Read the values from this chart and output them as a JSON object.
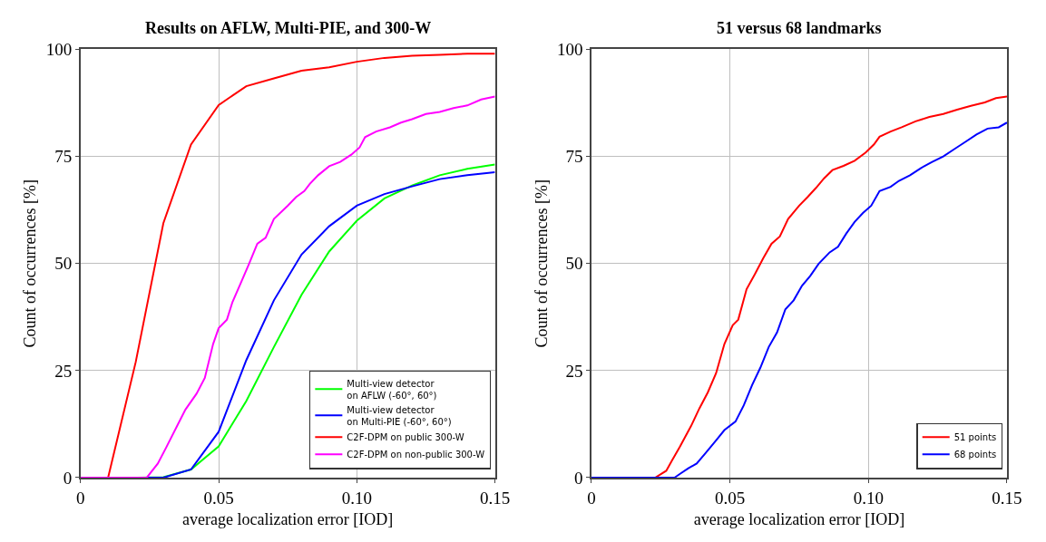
{
  "chart_data": [
    {
      "type": "line",
      "title": "Results on AFLW, Multi-PIE, and 300-W",
      "xlabel": "average localization error [IOD]",
      "ylabel": "Count of occurrences [%]",
      "xlim": [
        0,
        0.15
      ],
      "ylim": [
        0,
        100
      ],
      "xticks": [
        0,
        0.05,
        {
          "value": 0.1,
          "label": "0.10"
        },
        0.15
      ],
      "yticks": [
        0,
        25,
        50,
        75,
        100
      ],
      "grid": true,
      "legend": "bottom right",
      "marker": "none",
      "line_style": "solid",
      "series": [
        {
          "name": "Multi-view detector\non AFLW (-60°, 60°)",
          "color": "#00ff00",
          "x": [
            0,
            0.02,
            0.03,
            0.04,
            0.05,
            0.06,
            0.07,
            0.08,
            0.09,
            0.1,
            0.11,
            0.12,
            0.13,
            0.14,
            0.15
          ],
          "values": [
            0,
            0,
            0.1,
            1.9,
            7.3,
            17.9,
            30.5,
            42.7,
            52.8,
            60,
            65.2,
            68.2,
            70.6,
            72.1,
            73.1
          ]
        },
        {
          "name": "Multi-view detector\non Multi-PIE (-60°, 60°)",
          "color": "#0000ff",
          "x": [
            0,
            0.03,
            0.04,
            0.05,
            0.06,
            0.07,
            0.08,
            0.09,
            0.1,
            0.11,
            0.12,
            0.13,
            0.14,
            0.15
          ],
          "values": [
            0,
            0,
            1.9,
            10.7,
            27.4,
            41.4,
            52.1,
            58.7,
            63.5,
            66.2,
            68,
            69.7,
            70.6,
            71.3
          ]
        },
        {
          "name": "C2F-DPM on public 300-W",
          "color": "#ff0000",
          "x": [
            0,
            0.01,
            0.02,
            0.03,
            0.04,
            0.05,
            0.06,
            0.07,
            0.08,
            0.09,
            0.1,
            0.11,
            0.12,
            0.13,
            0.14,
            0.15
          ],
          "values": [
            0,
            0,
            27,
            59.4,
            77.8,
            87,
            91.4,
            93.2,
            95,
            95.8,
            97.1,
            98,
            98.5,
            98.7,
            99,
            99
          ]
        },
        {
          "name": "C2F-DPM on non-public 300-W",
          "color": "#ff00ff",
          "x": [
            0,
            0.024,
            0.028,
            0.031,
            0.035,
            0.038,
            0.042,
            0.045,
            0.048,
            0.05,
            0.053,
            0.055,
            0.058,
            0.061,
            0.064,
            0.067,
            0.07,
            0.075,
            0.078,
            0.081,
            0.083,
            0.086,
            0.09,
            0.094,
            0.098,
            0.101,
            0.103,
            0.107,
            0.112,
            0.116,
            0.12,
            0.125,
            0.13,
            0.135,
            0.14,
            0.145,
            0.15
          ],
          "values": [
            0,
            0,
            3.3,
            7,
            12.1,
            15.9,
            19.6,
            23.3,
            31.2,
            34.9,
            36.9,
            41,
            45.4,
            49.9,
            54.6,
            56,
            60.4,
            63.5,
            65.5,
            66.9,
            68.6,
            70.6,
            72.7,
            73.7,
            75.4,
            77.1,
            79.5,
            80.8,
            81.8,
            82.9,
            83.7,
            84.9,
            85.4,
            86.3,
            86.9,
            88.3,
            89
          ]
        }
      ]
    },
    {
      "type": "line",
      "title": "51 versus 68 landmarks",
      "xlabel": "average localization error [IOD]",
      "ylabel": "Count of occurrences [%]",
      "xlim": [
        0,
        0.15
      ],
      "ylim": [
        0,
        100
      ],
      "xticks": [
        0,
        0.05,
        {
          "value": 0.1,
          "label": "0.10"
        },
        0.15
      ],
      "yticks": [
        0,
        25,
        50,
        75,
        100
      ],
      "grid": true,
      "legend": "bottom right",
      "marker": "none",
      "line_style": "solid",
      "series": [
        {
          "name": "51 points",
          "color": "#ff0000",
          "x": [
            0,
            0.023,
            0.027,
            0.029,
            0.032,
            0.036,
            0.039,
            0.042,
            0.045,
            0.048,
            0.051,
            0.053,
            0.056,
            0.059,
            0.062,
            0.065,
            0.068,
            0.071,
            0.075,
            0.078,
            0.081,
            0.084,
            0.087,
            0.091,
            0.095,
            0.099,
            0.102,
            0.104,
            0.108,
            0.112,
            0.117,
            0.122,
            0.127,
            0.132,
            0.137,
            0.142,
            0.146,
            0.15
          ],
          "values": [
            0,
            0,
            1.6,
            3.9,
            7.3,
            12.1,
            16.2,
            19.9,
            24.4,
            31.2,
            35.6,
            36.9,
            44,
            47.5,
            51.2,
            54.6,
            56.3,
            60.4,
            63.5,
            65.5,
            67.6,
            69.9,
            71.8,
            72.8,
            74,
            75.9,
            77.8,
            79.6,
            80.8,
            81.8,
            83.2,
            84.2,
            84.9,
            85.9,
            86.8,
            87.6,
            88.6,
            89
          ]
        },
        {
          "name": "68 points",
          "color": "#0000ff",
          "x": [
            0,
            0.03,
            0.032,
            0.035,
            0.038,
            0.041,
            0.045,
            0.048,
            0.052,
            0.055,
            0.058,
            0.061,
            0.064,
            0.067,
            0.07,
            0.073,
            0.076,
            0.079,
            0.082,
            0.086,
            0.089,
            0.092,
            0.095,
            0.098,
            0.101,
            0.104,
            0.108,
            0.111,
            0.115,
            0.119,
            0.123,
            0.127,
            0.131,
            0.135,
            0.139,
            0.143,
            0.147,
            0.15
          ],
          "values": [
            0,
            0,
            0.9,
            2.2,
            3.3,
            5.6,
            8.7,
            11.1,
            13.1,
            16.9,
            21.6,
            25.7,
            30.5,
            33.9,
            39.3,
            41.4,
            44.8,
            47.1,
            49.9,
            52.6,
            53.9,
            57,
            59.7,
            61.8,
            63.5,
            66.9,
            67.9,
            69.3,
            70.6,
            72.3,
            73.7,
            75,
            76.7,
            78.4,
            80.1,
            81.5,
            81.8,
            82.9
          ]
        }
      ]
    }
  ]
}
